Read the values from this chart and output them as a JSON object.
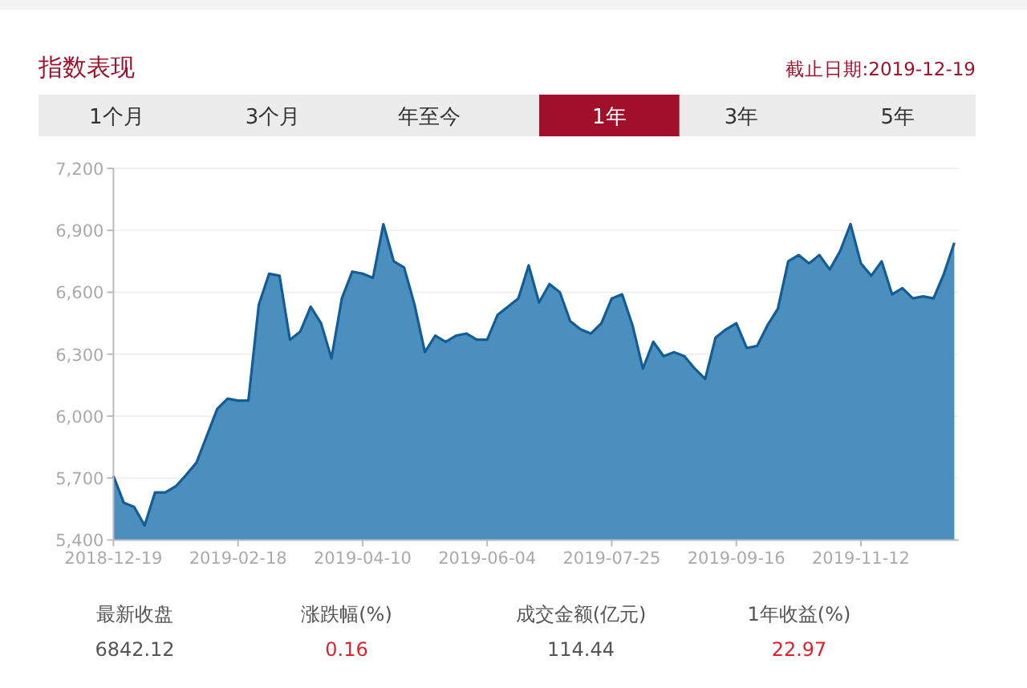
{
  "chart_data": {
    "type": "area",
    "title": "指数表现",
    "annotations": [
      "截止日期:2019-12-19",
      "1个月",
      "3个月",
      "年至今",
      "1年",
      "3年",
      "5年",
      "最新收盘",
      "6842.12",
      "涨跌幅(%)",
      "0.16",
      "成交金额(亿元)",
      "114.44",
      "1年收益(%)",
      "22.97"
    ],
    "categories": [
      "2018-12-19",
      null,
      null,
      null,
      null,
      null,
      null,
      null,
      null,
      null,
      null,
      null,
      "2019-02-18",
      null,
      null,
      null,
      null,
      null,
      null,
      null,
      null,
      null,
      null,
      null,
      "2019-04-10",
      null,
      null,
      null,
      null,
      null,
      null,
      null,
      null,
      null,
      null,
      null,
      "2019-06-04",
      null,
      null,
      null,
      null,
      null,
      null,
      null,
      null,
      null,
      null,
      null,
      "2019-07-25",
      null,
      null,
      null,
      null,
      null,
      null,
      null,
      null,
      null,
      null,
      null,
      "2019-09-16",
      null,
      null,
      null,
      null,
      null,
      null,
      null,
      null,
      null,
      null,
      null,
      "2019-11-12",
      null,
      null,
      null,
      null,
      null,
      null,
      null,
      null,
      null
    ],
    "values": [
      5710,
      5580,
      5560,
      5470,
      5630,
      5630,
      5660,
      5715,
      5775,
      5905,
      6035,
      6085,
      6075,
      6075,
      6540,
      6690,
      6680,
      6370,
      6410,
      6530,
      6450,
      6280,
      6570,
      6700,
      6690,
      6670,
      6930,
      6750,
      6720,
      6540,
      6310,
      6390,
      6360,
      6390,
      6400,
      6370,
      6370,
      6490,
      6530,
      6570,
      6730,
      6550,
      6640,
      6600,
      6460,
      6420,
      6400,
      6450,
      6570,
      6590,
      6440,
      6230,
      6360,
      6290,
      6310,
      6290,
      6230,
      6180,
      6380,
      6420,
      6450,
      6330,
      6340,
      6440,
      6520,
      6750,
      6780,
      6740,
      6780,
      6710,
      6800,
      6930,
      6740,
      6680,
      6750,
      6590,
      6620,
      6570,
      6580,
      6570,
      6690,
      6840
    ],
    "color": "#4b8fbe",
    "ylim": [
      5400,
      7200
    ],
    "yticks": [
      {
        "value": 5400,
        "label": "5,400"
      },
      {
        "value": 5700,
        "label": "5,700"
      },
      {
        "value": 6000,
        "label": "6,000"
      },
      {
        "value": 6300,
        "label": "6,300"
      },
      {
        "value": 6600,
        "label": "6,600"
      },
      {
        "value": 6900,
        "label": "6,900"
      },
      {
        "value": 7200,
        "label": "7,200"
      }
    ],
    "grid": "y"
  }
}
